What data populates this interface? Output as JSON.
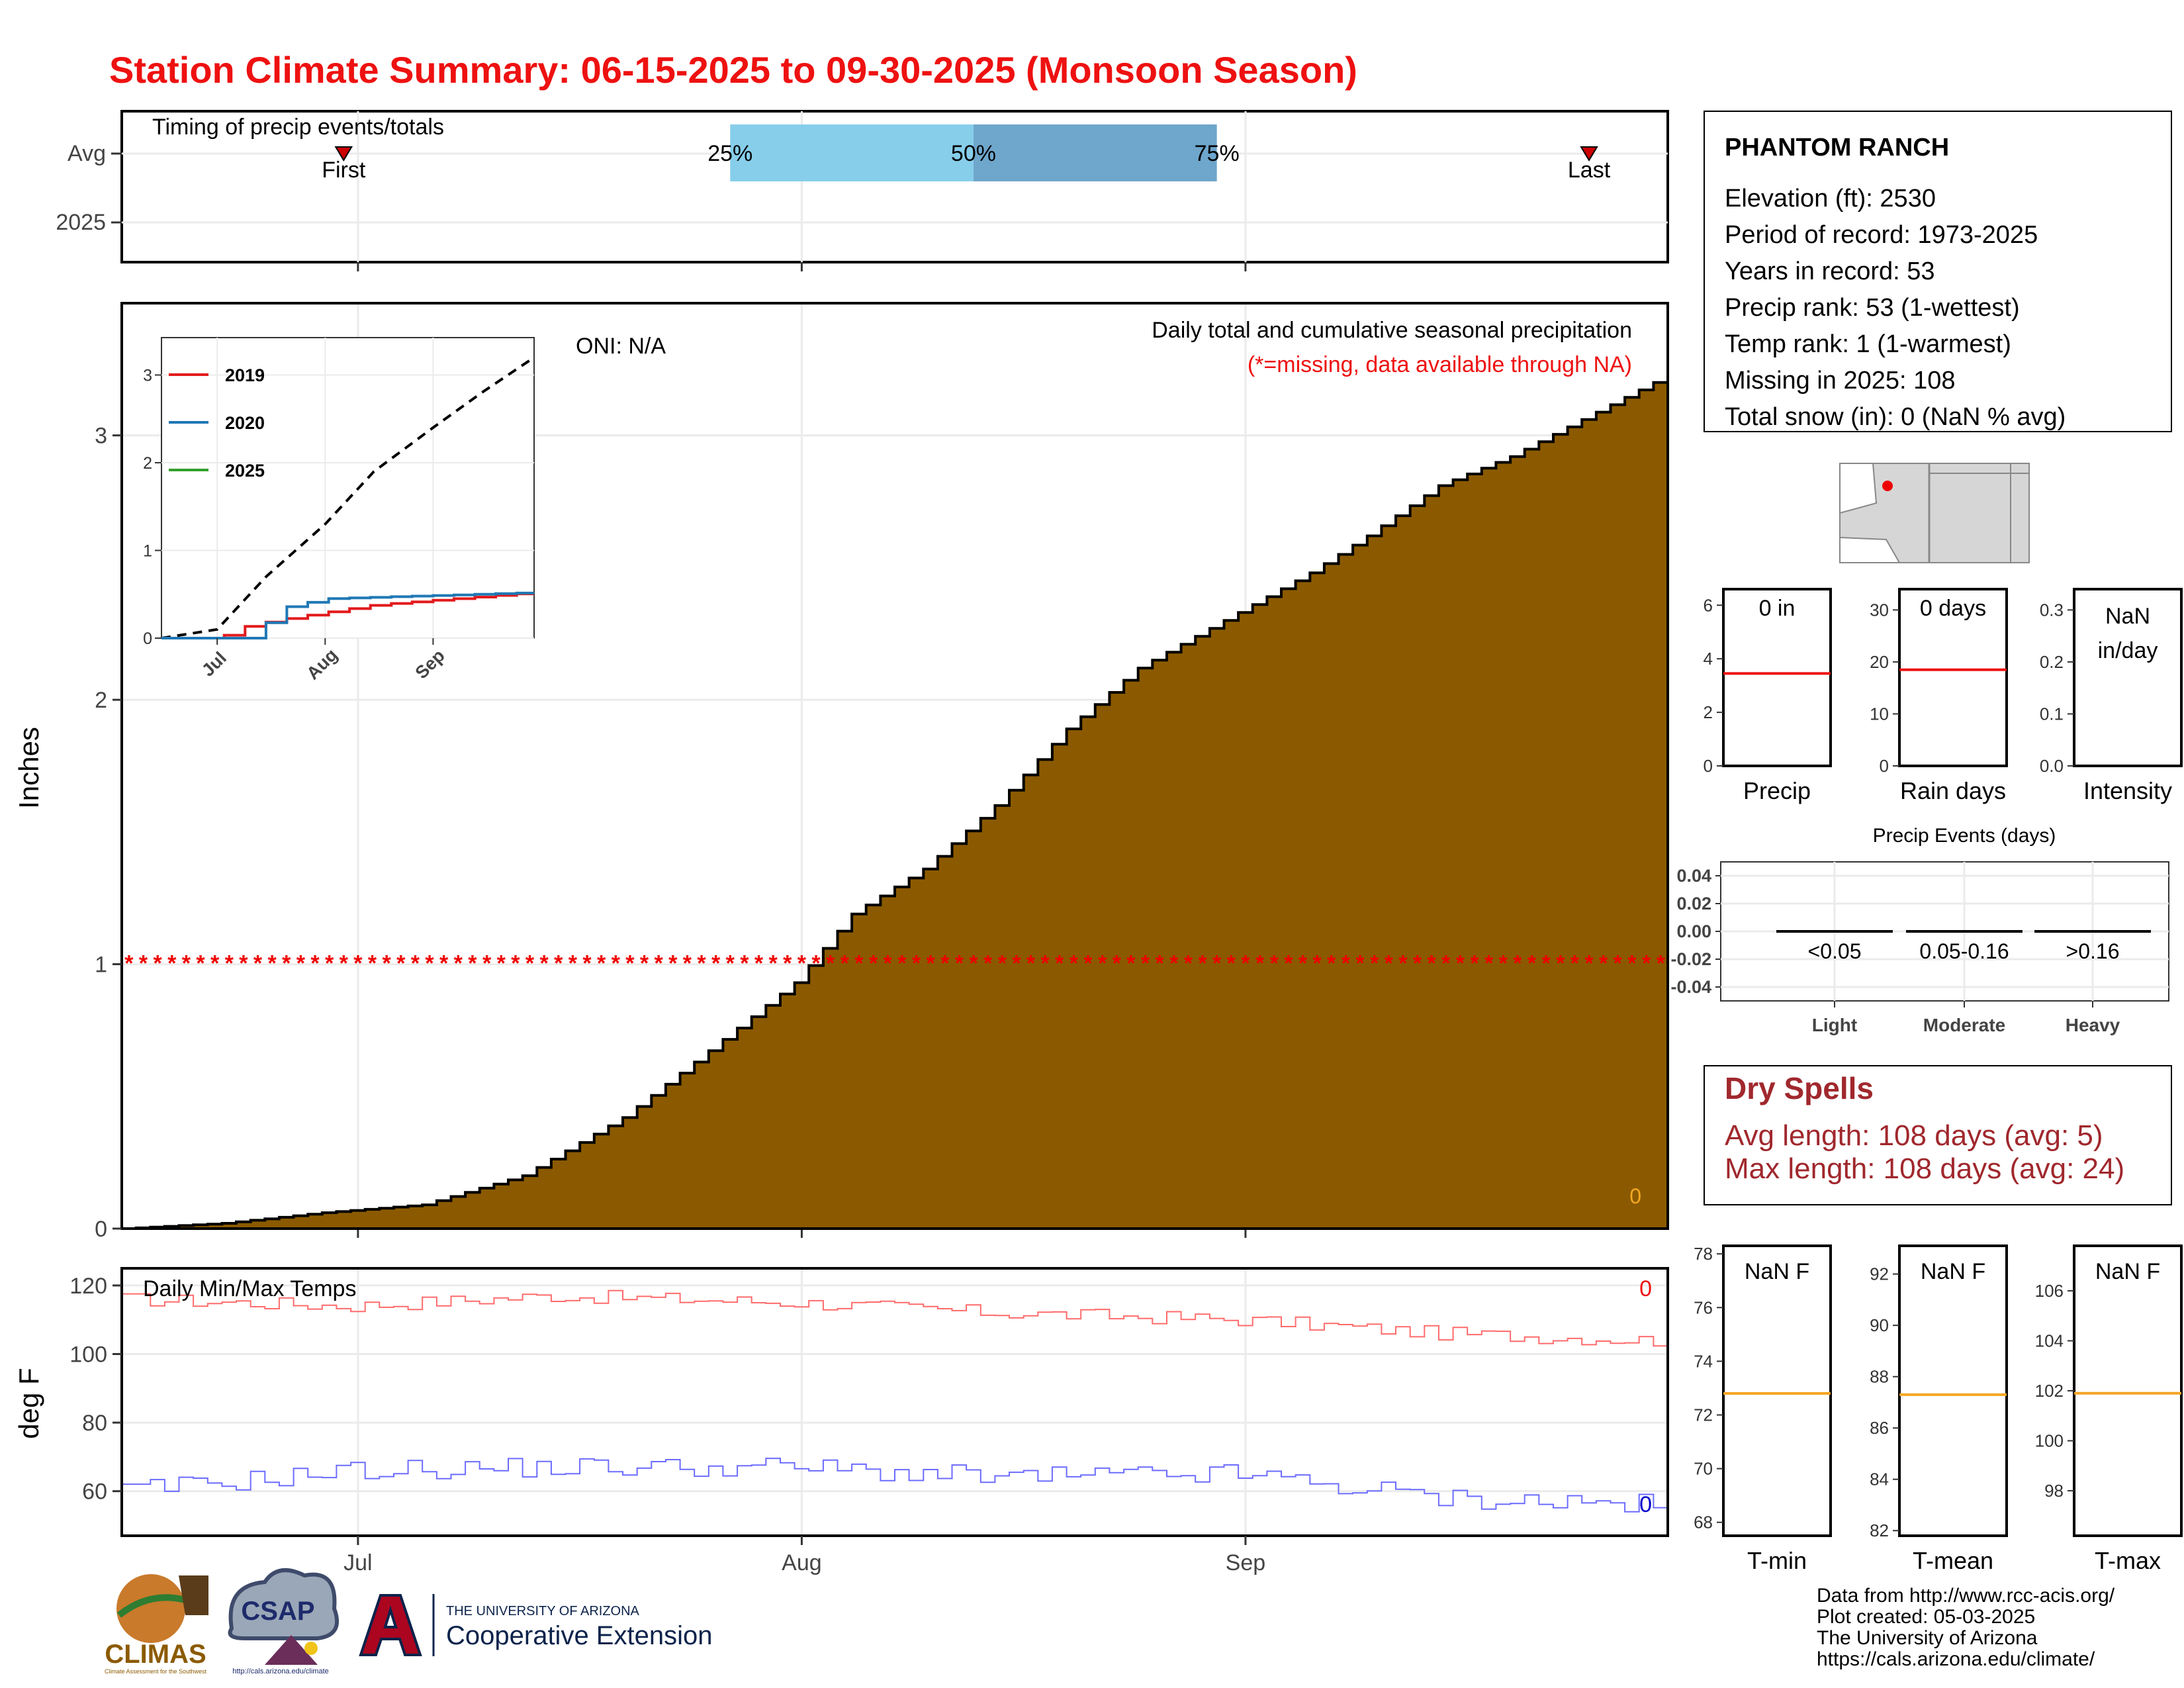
{
  "title": "Station Climate Summary: 06-15-2025 to 09-30-2025 (Monsoon Season)",
  "colors": {
    "title": "#ee1111",
    "fill": "#8b5a00",
    "quart1": "#87ceeb",
    "quart2": "#6fa6cc",
    "red": "#e31a1c",
    "blue": "#1f78b4",
    "green": "#33a02c",
    "orange": "#f5a623",
    "dry": "#a0282d"
  },
  "timing": {
    "label": "Timing of precip events/totals",
    "rows": [
      "Avg",
      "2025"
    ],
    "first_label": "First",
    "last_label": "Last",
    "first_date": "2025-06-30",
    "last_date": "2025-09-25",
    "quantiles": [
      {
        "label": "25%",
        "date": "2025-07-27"
      },
      {
        "label": "50%",
        "date": "2025-08-13"
      },
      {
        "label": "75%",
        "date": "2025-08-30"
      }
    ]
  },
  "main_chart": {
    "ylabel": "Inches",
    "x_ticks": [
      {
        "label": "Jul",
        "date": "2025-07-01"
      },
      {
        "label": "Aug",
        "date": "2025-08-01"
      },
      {
        "label": "Sep",
        "date": "2025-09-01"
      }
    ],
    "y_ticks": [
      0,
      1,
      2,
      3
    ],
    "annotation_title": "Daily total and cumulative seasonal precipitation",
    "annotation_missing": "(*=missing, data available through NA)",
    "oni": "ONI: N/A",
    "zero_label": "0"
  },
  "inset": {
    "legend": [
      "2019",
      "2020",
      "2025"
    ],
    "y_ticks": [
      0,
      1,
      2,
      3
    ],
    "x_ticks": [
      "Jul",
      "Aug",
      "Sep"
    ]
  },
  "temps": {
    "label": "Daily Min/Max Temps",
    "ylabel": "deg F",
    "y_ticks": [
      60,
      80,
      100,
      120
    ],
    "max_last": "0",
    "min_last": "0"
  },
  "station": {
    "name": "PHANTOM RANCH",
    "lines": [
      "Elevation (ft): 2530",
      "Period of record: 1973-2025",
      "Years in record: 53",
      "Precip rank: 53 (1-wettest)",
      "Temp rank: 1 (1-warmest)",
      "Missing in 2025: 108",
      "Total snow (in): 0 (NaN % avg)"
    ]
  },
  "mini": [
    {
      "value": "0 in",
      "label": "Precip",
      "ticks": [
        0,
        2,
        4,
        6
      ],
      "ymax": 6.6,
      "avg": 3.45
    },
    {
      "value": "0 days",
      "label": "Rain days",
      "ticks": [
        0,
        10,
        20,
        30
      ],
      "ymax": 34,
      "avg": 18.5
    },
    {
      "value": "NaN in/day",
      "label": "Intensity",
      "ticks": [
        "0.0",
        "0.1",
        "0.2",
        "0.3"
      ],
      "ymax": 0.34,
      "avg": null
    }
  ],
  "events": {
    "title": "Precip Events (days)",
    "y_ticks": [
      "0.04",
      "0.02",
      "0.00",
      "-0.02",
      "-0.04"
    ],
    "cats": [
      {
        "range": "<0.05",
        "name": "Light",
        "value": 0
      },
      {
        "range": "0.05-0.16",
        "name": "Moderate",
        "value": 0
      },
      {
        "range": ">0.16",
        "name": "Heavy",
        "value": 0
      }
    ]
  },
  "dry": {
    "title": "Dry Spells",
    "avg": "Avg length: 108 days (avg: 5)",
    "max": "Max length: 108 days (avg: 24)"
  },
  "tmini": [
    {
      "value": "NaN F",
      "label": "T-min",
      "ticks": [
        68,
        70,
        72,
        74,
        76,
        78
      ],
      "ymin": 67.5,
      "ymax": 78.3,
      "avg": 72.8
    },
    {
      "value": "NaN F",
      "label": "T-mean",
      "ticks": [
        82,
        84,
        86,
        88,
        90,
        92
      ],
      "ymin": 81.8,
      "ymax": 93.1,
      "avg": 87.3
    },
    {
      "value": "NaN F",
      "label": "T-max",
      "ticks": [
        98,
        100,
        102,
        104,
        106
      ],
      "ymin": 96.2,
      "ymax": 107.8,
      "avg": 101.9
    }
  ],
  "footer": [
    "Data from http://www.rcc-acis.org/",
    "Plot created: 05-03-2025",
    "The University of Arizona",
    "https://cals.arizona.edu/climate/"
  ],
  "logos": {
    "climas": "CLIMAS",
    "climas_sub": "Climate Assessment for the Southwest",
    "csap": "CSAP",
    "csap_url": "http://cals.arizona.edu/climate",
    "ua_top": "THE UNIVERSITY OF ARIZONA",
    "ua_bottom": "Cooperative Extension"
  },
  "chart_data": [
    {
      "type": "area",
      "title": "Daily total and cumulative seasonal precipitation",
      "ylabel": "Inches",
      "ylim": [
        0,
        3.5
      ],
      "series": [
        {
          "name": "",
          "x": [
            "2025-06-15",
            "2025-06-22",
            "2025-06-29",
            "2025-07-06",
            "2025-07-13",
            "2025-07-20",
            "2025-07-25",
            "2025-08-01",
            "2025-08-05",
            "2025-08-10",
            "2025-08-15",
            "2025-08-20",
            "2025-08-25",
            "2025-09-01",
            "2025-09-06",
            "2025-09-10",
            "2025-09-15",
            "2025-09-20",
            "2025-09-25",
            "2025-09-30"
          ],
          "values": [
            0,
            0.02,
            0.06,
            0.09,
            0.2,
            0.42,
            0.63,
            0.93,
            1.19,
            1.36,
            1.6,
            1.89,
            2.12,
            2.33,
            2.48,
            2.62,
            2.81,
            2.92,
            3.06,
            3.2
          ]
        }
      ]
    },
    {
      "type": "line",
      "title": "",
      "ylim": [
        0,
        3.2
      ],
      "series": [
        {
          "name": "",
          "x": [
            "2025-06-15",
            "2025-07-01",
            "2025-07-15",
            "2025-08-01",
            "2025-08-15",
            "2025-09-01",
            "2025-09-15",
            "2025-09-30"
          ],
          "values": [
            0,
            0.1,
            0.7,
            1.3,
            1.9,
            2.4,
            2.8,
            3.2
          ]
        },
        {
          "name": "2019",
          "x": [
            "2025-06-15",
            "2025-07-01",
            "2025-07-10",
            "2025-07-25",
            "2025-08-15",
            "2025-09-30"
          ],
          "values": [
            0,
            0,
            0.15,
            0.25,
            0.38,
            0.52
          ]
        },
        {
          "name": "2020",
          "x": [
            "2025-06-15",
            "2025-07-10",
            "2025-07-20",
            "2025-08-01",
            "2025-09-30"
          ],
          "values": [
            0,
            0,
            0.35,
            0.45,
            0.52
          ]
        },
        {
          "name": "2025",
          "x": [],
          "values": []
        }
      ]
    },
    {
      "type": "line",
      "title": "Daily Min/Max Temps",
      "ylabel": "deg F",
      "ylim": [
        47,
        125
      ],
      "series": [
        {
          "name": "",
          "x": [
            "2025-06-15",
            "2025-07-01",
            "2025-07-15",
            "2025-08-01",
            "2025-08-15",
            "2025-09-01",
            "2025-09-15",
            "2025-09-30"
          ],
          "values": [
            116,
            114,
            117,
            115,
            112,
            110,
            106,
            104
          ]
        },
        {
          "name": "",
          "x": [
            "2025-06-15",
            "2025-07-01",
            "2025-07-15",
            "2025-08-01",
            "2025-08-15",
            "2025-09-01",
            "2025-09-15",
            "2025-09-30"
          ],
          "values": [
            60,
            66,
            67,
            67,
            64,
            65,
            58,
            56
          ]
        }
      ]
    },
    {
      "type": "bar",
      "title": "Precip Events (days)",
      "categories": [
        "Light",
        "Moderate",
        "Heavy"
      ],
      "values": [
        0,
        0,
        0
      ],
      "ylim": [
        -0.04,
        0.04
      ]
    }
  ]
}
